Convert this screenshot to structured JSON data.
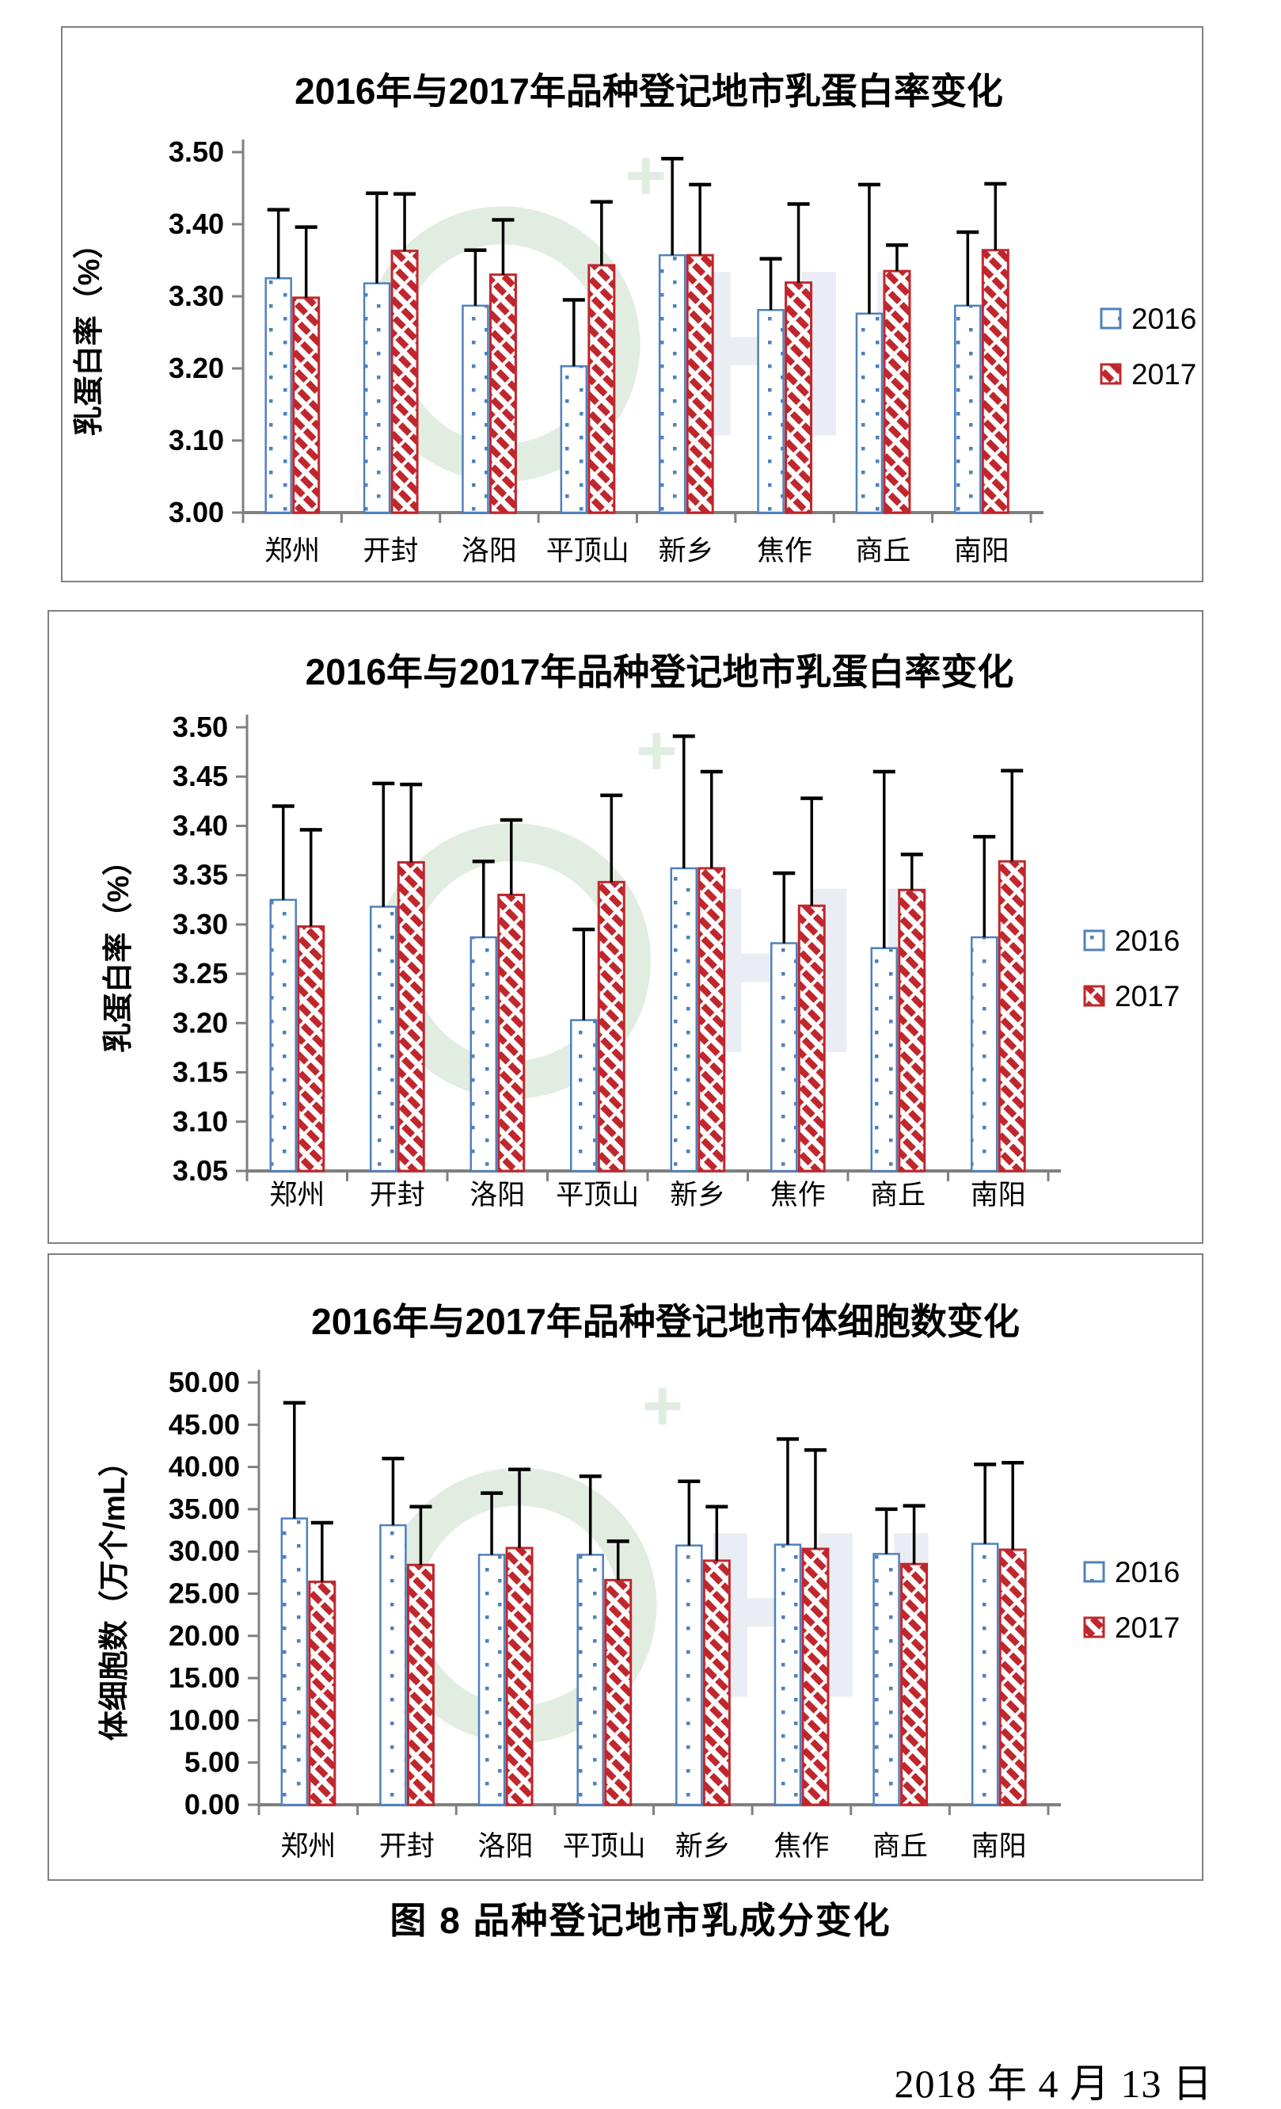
{
  "document": {
    "caption": "图 8 品种登记地市乳成分变化",
    "date": "2018 年 4 月 13 日"
  },
  "colors": {
    "series_2016": "#4f81bd",
    "series_2017": "#c0272d",
    "axis_gray": "#808080",
    "error_bar_black": "#000000",
    "watermark_green": "#9cc49a",
    "watermark_blue": "#aebdd4"
  },
  "legend_labels": [
    "2016",
    "2017"
  ],
  "chart_data": [
    {
      "type": "bar",
      "title": "2016年与2017年品种登记地市乳蛋白率变化",
      "ylabel": "乳蛋白率（%）",
      "xlabel": "",
      "ylim": [
        3.0,
        3.5
      ],
      "y_step": 0.1,
      "y_tick_decimals": 2,
      "grid": false,
      "legend_position": "right",
      "error_bars": "upper",
      "categories": [
        "郑州",
        "开封",
        "洛阳",
        "平顶山",
        "新乡",
        "焦作",
        "商丘",
        "南阳"
      ],
      "series": [
        {
          "name": "2016",
          "values": [
            3.325,
            3.318,
            3.287,
            3.203,
            3.357,
            3.281,
            3.276,
            3.287
          ],
          "error_top": [
            3.42,
            3.443,
            3.364,
            3.295,
            3.491,
            3.352,
            3.455,
            3.389
          ]
        },
        {
          "name": "2017",
          "values": [
            3.298,
            3.363,
            3.33,
            3.343,
            3.357,
            3.319,
            3.335,
            3.364
          ],
          "error_top": [
            3.396,
            3.442,
            3.406,
            3.431,
            3.455,
            3.428,
            3.371,
            3.456
          ]
        }
      ]
    },
    {
      "type": "bar",
      "title": "2016年与2017年品种登记地市乳蛋白率变化",
      "ylabel": "乳蛋白率（%）",
      "xlabel": "",
      "ylim": [
        3.05,
        3.5
      ],
      "y_step": 0.05,
      "y_tick_decimals": 2,
      "grid": false,
      "legend_position": "right",
      "error_bars": "upper",
      "categories": [
        "郑州",
        "开封",
        "洛阳",
        "平顶山",
        "新乡",
        "焦作",
        "商丘",
        "南阳"
      ],
      "series": [
        {
          "name": "2016",
          "values": [
            3.325,
            3.318,
            3.287,
            3.203,
            3.357,
            3.281,
            3.276,
            3.287
          ],
          "error_top": [
            3.42,
            3.443,
            3.364,
            3.295,
            3.491,
            3.352,
            3.455,
            3.389
          ]
        },
        {
          "name": "2017",
          "values": [
            3.298,
            3.363,
            3.33,
            3.343,
            3.357,
            3.319,
            3.335,
            3.364
          ],
          "error_top": [
            3.396,
            3.442,
            3.406,
            3.431,
            3.455,
            3.428,
            3.371,
            3.456
          ]
        }
      ]
    },
    {
      "type": "bar",
      "title": "2016年与2017年品种登记地市体细胞数变化",
      "ylabel": "体细胞数（万个/mL）",
      "xlabel": "",
      "ylim": [
        0.0,
        50.0
      ],
      "y_step": 5.0,
      "y_tick_decimals": 2,
      "grid": false,
      "legend_position": "right",
      "error_bars": "upper",
      "categories": [
        "郑州",
        "开封",
        "洛阳",
        "平顶山",
        "新乡",
        "焦作",
        "商丘",
        "南阳"
      ],
      "series": [
        {
          "name": "2016",
          "values": [
            33.9,
            33.1,
            29.6,
            29.6,
            30.7,
            30.8,
            29.7,
            30.9
          ],
          "error_top": [
            47.6,
            41.0,
            36.9,
            38.9,
            38.3,
            43.3,
            35.0,
            40.3
          ]
        },
        {
          "name": "2017",
          "values": [
            26.4,
            28.4,
            30.4,
            26.6,
            28.9,
            30.3,
            28.5,
            30.2
          ],
          "error_top": [
            33.4,
            35.3,
            39.7,
            31.2,
            35.3,
            42.0,
            35.4,
            40.5
          ]
        }
      ]
    }
  ]
}
